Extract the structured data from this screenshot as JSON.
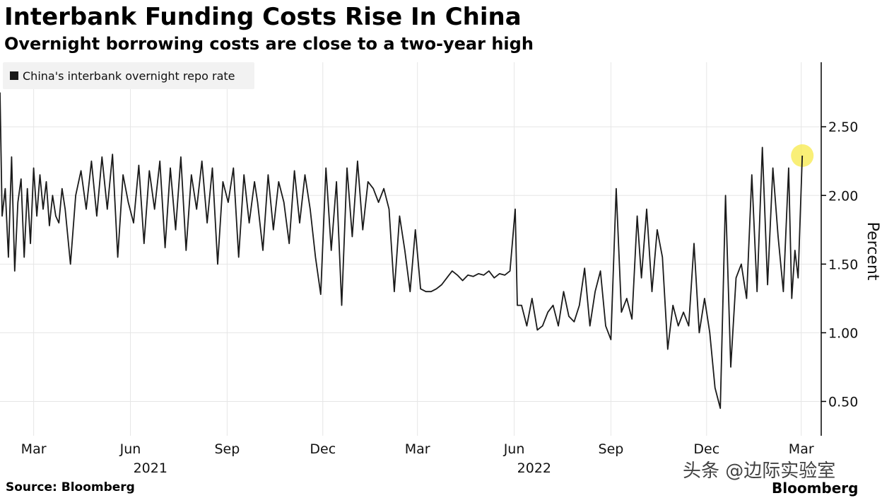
{
  "header": {
    "title": "Interbank Funding Costs Rise In China",
    "subtitle": "Overnight borrowing costs are close to a two-year high"
  },
  "footer": {
    "source": "Source: Bloomberg",
    "watermark": "头条 @边际实验室",
    "brand": "Bloomberg"
  },
  "colors": {
    "line": "#1a1a1a",
    "grid": "#e6e6e6",
    "axis": "#000000",
    "highlight": "#f7e94a",
    "legend_bg": "#f2f2f2"
  },
  "chart_data": {
    "type": "line",
    "title": "Interbank Funding Costs Rise In China",
    "subtitle": "Overnight borrowing costs are close to a two-year high",
    "xlabel": "",
    "ylabel": "Percent",
    "ylim": [
      0.25,
      2.97
    ],
    "xlim": [
      "2021-01-28",
      "2023-03-20"
    ],
    "grid": true,
    "legend_position": "top-left",
    "y_ticks": [
      {
        "value": 0.5,
        "label": "0.50"
      },
      {
        "value": 1.0,
        "label": "1.00"
      },
      {
        "value": 1.5,
        "label": "1.50"
      },
      {
        "value": 2.0,
        "label": "2.00"
      },
      {
        "value": 2.5,
        "label": "2.50"
      }
    ],
    "x_ticks": [
      {
        "date": "2021-03-01",
        "label": "Mar"
      },
      {
        "date": "2021-06-01",
        "label": "Jun"
      },
      {
        "date": "2021-09-01",
        "label": "Sep"
      },
      {
        "date": "2021-12-01",
        "label": "Dec"
      },
      {
        "date": "2022-03-01",
        "label": "Mar"
      },
      {
        "date": "2022-06-01",
        "label": "Jun"
      },
      {
        "date": "2022-09-01",
        "label": "Sep"
      },
      {
        "date": "2022-12-01",
        "label": "Dec"
      },
      {
        "date": "2023-03-01",
        "label": "Mar"
      }
    ],
    "year_labels": [
      {
        "date": "2021-06-20",
        "label": "2021"
      },
      {
        "date": "2022-06-20",
        "label": "2022"
      }
    ],
    "highlight_point": {
      "date": "2023-03-02",
      "value": 2.29
    },
    "series": [
      {
        "name": "China's interbank overnight repo rate",
        "x": [
          "2021-01-28",
          "2021-01-30",
          "2021-02-02",
          "2021-02-05",
          "2021-02-08",
          "2021-02-11",
          "2021-02-14",
          "2021-02-17",
          "2021-02-20",
          "2021-02-23",
          "2021-02-26",
          "2021-03-01",
          "2021-03-04",
          "2021-03-07",
          "2021-03-10",
          "2021-03-13",
          "2021-03-16",
          "2021-03-19",
          "2021-03-22",
          "2021-03-25",
          "2021-03-28",
          "2021-03-31",
          "2021-04-05",
          "2021-04-10",
          "2021-04-15",
          "2021-04-20",
          "2021-04-25",
          "2021-04-30",
          "2021-05-05",
          "2021-05-10",
          "2021-05-15",
          "2021-05-20",
          "2021-05-25",
          "2021-05-30",
          "2021-06-04",
          "2021-06-09",
          "2021-06-14",
          "2021-06-19",
          "2021-06-24",
          "2021-06-29",
          "2021-07-04",
          "2021-07-09",
          "2021-07-14",
          "2021-07-19",
          "2021-07-24",
          "2021-07-29",
          "2021-08-03",
          "2021-08-08",
          "2021-08-13",
          "2021-08-18",
          "2021-08-23",
          "2021-08-28",
          "2021-09-02",
          "2021-09-07",
          "2021-09-12",
          "2021-09-17",
          "2021-09-22",
          "2021-09-27",
          "2021-09-30",
          "2021-10-05",
          "2021-10-10",
          "2021-10-15",
          "2021-10-20",
          "2021-10-25",
          "2021-10-30",
          "2021-11-04",
          "2021-11-09",
          "2021-11-14",
          "2021-11-19",
          "2021-11-24",
          "2021-11-29",
          "2021-12-04",
          "2021-12-09",
          "2021-12-14",
          "2021-12-19",
          "2021-12-24",
          "2021-12-29",
          "2022-01-03",
          "2022-01-08",
          "2022-01-13",
          "2022-01-18",
          "2022-01-23",
          "2022-01-28",
          "2022-02-02",
          "2022-02-07",
          "2022-02-12",
          "2022-02-17",
          "2022-02-22",
          "2022-02-27",
          "2022-03-04",
          "2022-03-09",
          "2022-03-14",
          "2022-03-19",
          "2022-03-24",
          "2022-03-29",
          "2022-04-03",
          "2022-04-08",
          "2022-04-13",
          "2022-04-18",
          "2022-04-23",
          "2022-04-28",
          "2022-05-03",
          "2022-05-08",
          "2022-05-13",
          "2022-05-18",
          "2022-05-23",
          "2022-05-28",
          "2022-06-02",
          "2022-06-04",
          "2022-06-08",
          "2022-06-13",
          "2022-06-18",
          "2022-06-23",
          "2022-06-28",
          "2022-07-03",
          "2022-07-08",
          "2022-07-13",
          "2022-07-18",
          "2022-07-23",
          "2022-07-28",
          "2022-08-02",
          "2022-08-07",
          "2022-08-12",
          "2022-08-17",
          "2022-08-22",
          "2022-08-27",
          "2022-09-01",
          "2022-09-06",
          "2022-09-11",
          "2022-09-16",
          "2022-09-21",
          "2022-09-26",
          "2022-09-30",
          "2022-10-05",
          "2022-10-10",
          "2022-10-15",
          "2022-10-20",
          "2022-10-25",
          "2022-10-30",
          "2022-11-04",
          "2022-11-09",
          "2022-11-14",
          "2022-11-19",
          "2022-11-24",
          "2022-11-29",
          "2022-12-04",
          "2022-12-09",
          "2022-12-14",
          "2022-12-19",
          "2022-12-24",
          "2022-12-29",
          "2023-01-03",
          "2023-01-08",
          "2023-01-13",
          "2023-01-18",
          "2023-01-23",
          "2023-01-28",
          "2023-02-02",
          "2023-02-07",
          "2023-02-12",
          "2023-02-17",
          "2023-02-20",
          "2023-02-23",
          "2023-02-26",
          "2023-03-02"
        ],
        "values": [
          2.75,
          1.85,
          2.05,
          1.55,
          2.28,
          1.45,
          1.95,
          2.12,
          1.55,
          2.05,
          1.65,
          2.2,
          1.85,
          2.15,
          1.9,
          2.1,
          1.78,
          2.0,
          1.85,
          1.8,
          2.05,
          1.9,
          1.5,
          2.0,
          2.18,
          1.9,
          2.25,
          1.85,
          2.28,
          1.9,
          2.3,
          1.55,
          2.15,
          1.95,
          1.8,
          2.22,
          1.65,
          2.18,
          1.9,
          2.25,
          1.62,
          2.2,
          1.75,
          2.28,
          1.6,
          2.15,
          1.9,
          2.25,
          1.8,
          2.2,
          1.5,
          2.1,
          1.95,
          2.2,
          1.55,
          2.15,
          1.8,
          2.1,
          1.95,
          1.6,
          2.15,
          1.75,
          2.1,
          1.95,
          1.65,
          2.18,
          1.8,
          2.15,
          1.9,
          1.55,
          1.28,
          2.2,
          1.6,
          2.1,
          1.2,
          2.2,
          1.7,
          2.25,
          1.75,
          2.1,
          2.05,
          1.95,
          2.05,
          1.9,
          1.3,
          1.85,
          1.6,
          1.3,
          1.75,
          1.32,
          1.3,
          1.3,
          1.32,
          1.35,
          1.4,
          1.45,
          1.42,
          1.38,
          1.42,
          1.41,
          1.43,
          1.42,
          1.45,
          1.4,
          1.43,
          1.42,
          1.45,
          1.9,
          1.2,
          1.2,
          1.05,
          1.25,
          1.02,
          1.05,
          1.15,
          1.2,
          1.05,
          1.3,
          1.12,
          1.08,
          1.2,
          1.47,
          1.05,
          1.3,
          1.45,
          1.05,
          0.95,
          2.05,
          1.15,
          1.25,
          1.1,
          1.85,
          1.4,
          1.9,
          1.3,
          1.75,
          1.55,
          0.88,
          1.2,
          1.05,
          1.15,
          1.05,
          1.65,
          1.0,
          1.25,
          1.0,
          0.6,
          0.45,
          2.0,
          0.75,
          1.4,
          1.5,
          1.25,
          2.15,
          1.3,
          2.35,
          1.35,
          2.2,
          1.7,
          1.3,
          2.2,
          1.25,
          1.6,
          1.4,
          2.29
        ]
      }
    ]
  }
}
